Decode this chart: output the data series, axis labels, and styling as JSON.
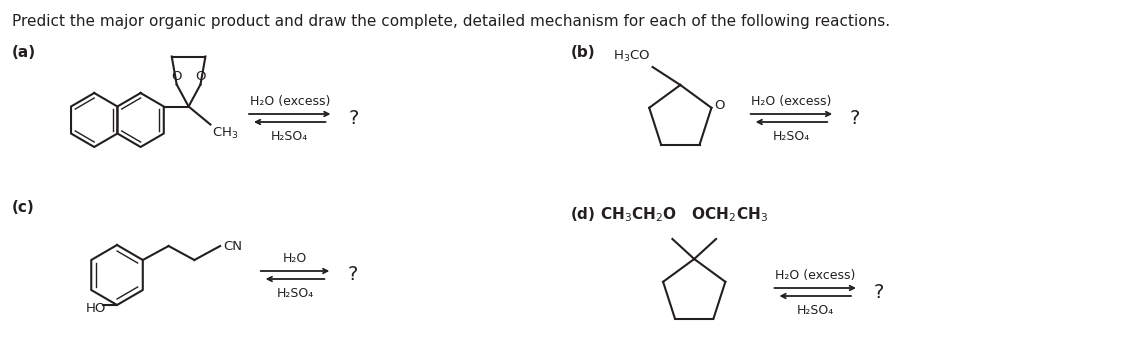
{
  "title": "Predict the major organic product and draw the complete, detailed mechanism for each of the following reactions.",
  "bg_color": "#ffffff",
  "text_color": "#231f20",
  "label_a": "(a)",
  "label_b": "(b)",
  "label_c": "(c)",
  "label_d": "(d)",
  "arrow_above_a": "H₂O (excess)",
  "arrow_below_a": "H₂SO₄",
  "arrow_above_b": "H₂O (excess)",
  "arrow_below_b": "H₂SO₄",
  "arrow_above_c": "H₂O",
  "arrow_below_c": "H₂SO₄",
  "arrow_above_d": "H₂O (excess)",
  "arrow_below_d": "H₂SO₄",
  "question_mark": "?",
  "font_size_title": 11,
  "font_size_label": 11,
  "font_size_q": 14
}
